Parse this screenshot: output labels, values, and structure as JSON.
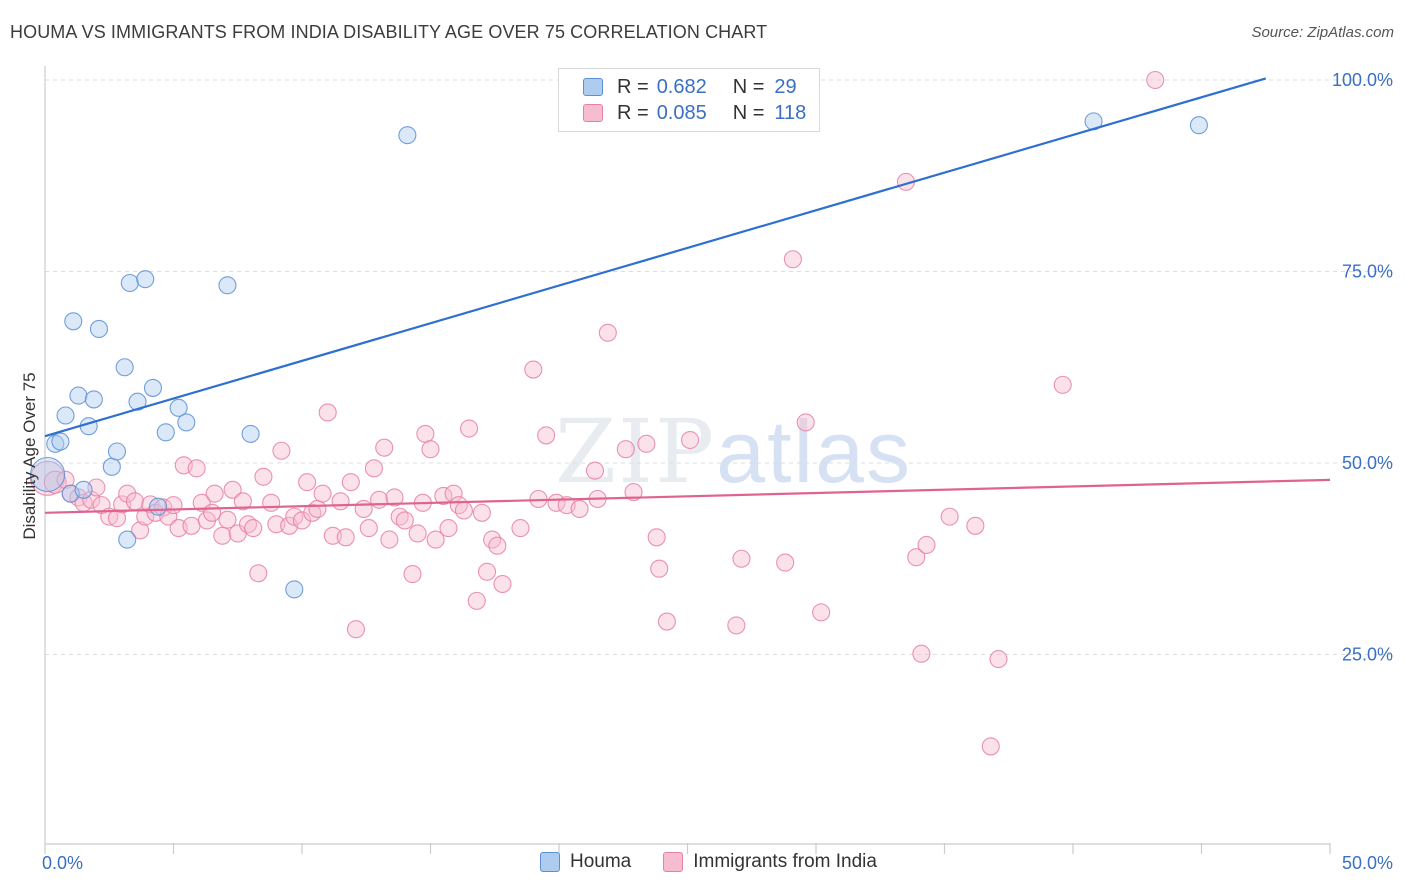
{
  "title": "HOUMA VS IMMIGRANTS FROM INDIA DISABILITY AGE OVER 75 CORRELATION CHART",
  "source": "Source: ZipAtlas.com",
  "watermark": {
    "zip": "ZIP",
    "atlas": "atlas"
  },
  "legend": {
    "houma": {
      "r_label": "R =",
      "r_value": "0.682",
      "n_label": "N =",
      "n_value": "29"
    },
    "india": {
      "r_label": "R =",
      "r_value": "0.085",
      "n_label": "N =",
      "n_value": "118"
    }
  },
  "bottom_legend": {
    "houma": "Houma",
    "india": "Immigrants from India"
  },
  "colors": {
    "houma_fill": "#aecbf0",
    "houma_stroke": "#5b8fd6",
    "houma_line": "#2e6fcf",
    "india_fill": "#f6bcd0",
    "india_stroke": "#e87fa4",
    "india_line": "#e0638f",
    "grid": "#dddddd",
    "axis_label": "#3a6fc4"
  },
  "chart_data": {
    "type": "scatter",
    "xlabel": "",
    "ylabel": "Disability Age Over 75",
    "xlim": [
      0,
      50
    ],
    "ylim": [
      0,
      104
    ],
    "x_tick_labels": [
      {
        "v": 0,
        "label": "0.0%"
      },
      {
        "v": 50,
        "label": "50.0%"
      }
    ],
    "y_tick_labels": [
      {
        "v": 25,
        "label": "25.0%"
      },
      {
        "v": 50,
        "label": "50.0%"
      },
      {
        "v": 75,
        "label": "75.0%"
      },
      {
        "v": 100,
        "label": "100.0%"
      }
    ],
    "series": [
      {
        "name": "Houma",
        "trend": {
          "x0": 0,
          "y0": 53.5,
          "x1": 47.5,
          "y1": 100.2
        },
        "points": [
          [
            0.1,
            48.5,
            3
          ],
          [
            0.4,
            52.5,
            1
          ],
          [
            0.6,
            52.8,
            1
          ],
          [
            0.8,
            56.2,
            1
          ],
          [
            1.0,
            46.0,
            1
          ],
          [
            1.1,
            68.5,
            1
          ],
          [
            1.3,
            58.8,
            1
          ],
          [
            1.7,
            54.8,
            1
          ],
          [
            1.9,
            58.3,
            1
          ],
          [
            2.1,
            67.5,
            1
          ],
          [
            1.5,
            46.5,
            1
          ],
          [
            2.6,
            49.5,
            1
          ],
          [
            2.8,
            51.5,
            1
          ],
          [
            3.1,
            62.5,
            1
          ],
          [
            3.2,
            40.0,
            1
          ],
          [
            3.3,
            73.5,
            1
          ],
          [
            3.6,
            58.0,
            1
          ],
          [
            3.9,
            74.0,
            1
          ],
          [
            4.2,
            59.8,
            1
          ],
          [
            4.4,
            44.3,
            1
          ],
          [
            4.7,
            54.0,
            1
          ],
          [
            5.2,
            57.2,
            1
          ],
          [
            5.5,
            55.3,
            1
          ],
          [
            7.1,
            73.2,
            1
          ],
          [
            8.0,
            53.8,
            1
          ],
          [
            9.7,
            33.5,
            1
          ],
          [
            14.1,
            92.8,
            1
          ],
          [
            40.8,
            94.6,
            1
          ],
          [
            44.9,
            94.1,
            1
          ]
        ]
      },
      {
        "name": "Immigrants from India",
        "trend": {
          "x0": 0,
          "y0": 43.5,
          "x1": 50,
          "y1": 47.8
        },
        "points": [
          [
            0.1,
            48.0,
            3
          ],
          [
            0.4,
            47.5,
            2
          ],
          [
            0.8,
            47.8,
            1
          ],
          [
            1.0,
            46.0,
            1
          ],
          [
            1.3,
            45.5,
            1
          ],
          [
            1.5,
            44.8,
            1
          ],
          [
            1.8,
            45.2,
            1
          ],
          [
            2.0,
            46.8,
            1
          ],
          [
            2.2,
            44.5,
            1
          ],
          [
            2.5,
            43.0,
            1
          ],
          [
            2.8,
            42.8,
            1
          ],
          [
            3.0,
            44.6,
            1
          ],
          [
            3.2,
            46.0,
            1
          ],
          [
            3.5,
            45.0,
            1
          ],
          [
            3.7,
            41.2,
            1
          ],
          [
            3.9,
            43.0,
            1
          ],
          [
            4.1,
            44.6,
            1
          ],
          [
            4.3,
            43.5,
            1
          ],
          [
            4.6,
            44.2,
            1
          ],
          [
            4.8,
            43.0,
            1
          ],
          [
            5.0,
            44.5,
            1
          ],
          [
            5.2,
            41.5,
            1
          ],
          [
            5.4,
            49.7,
            1
          ],
          [
            5.7,
            41.8,
            1
          ],
          [
            5.9,
            49.3,
            1
          ],
          [
            6.1,
            44.8,
            1
          ],
          [
            6.3,
            42.5,
            1
          ],
          [
            6.5,
            43.5,
            1
          ],
          [
            6.6,
            46.0,
            1
          ],
          [
            6.9,
            40.5,
            1
          ],
          [
            7.1,
            42.6,
            1
          ],
          [
            7.3,
            46.5,
            1
          ],
          [
            7.5,
            40.8,
            1
          ],
          [
            7.7,
            45.0,
            1
          ],
          [
            7.9,
            42.0,
            1
          ],
          [
            8.1,
            41.5,
            1
          ],
          [
            8.3,
            35.6,
            1
          ],
          [
            8.5,
            48.2,
            1
          ],
          [
            8.8,
            44.8,
            1
          ],
          [
            9.0,
            42.0,
            1
          ],
          [
            9.2,
            51.6,
            1
          ],
          [
            9.5,
            41.8,
            1
          ],
          [
            9.7,
            43.0,
            1
          ],
          [
            10.0,
            42.5,
            1
          ],
          [
            10.2,
            47.5,
            1
          ],
          [
            10.4,
            43.5,
            1
          ],
          [
            10.6,
            44.0,
            1
          ],
          [
            10.8,
            46.0,
            1
          ],
          [
            11.0,
            56.6,
            1
          ],
          [
            11.2,
            40.5,
            1
          ],
          [
            11.5,
            45.0,
            1
          ],
          [
            11.7,
            40.3,
            1
          ],
          [
            11.9,
            47.5,
            1
          ],
          [
            12.1,
            28.3,
            1
          ],
          [
            12.4,
            44.0,
            1
          ],
          [
            12.6,
            41.5,
            1
          ],
          [
            12.8,
            49.3,
            1
          ],
          [
            13.0,
            45.2,
            1
          ],
          [
            13.2,
            52.0,
            1
          ],
          [
            13.4,
            40.0,
            1
          ],
          [
            13.6,
            45.5,
            1
          ],
          [
            13.8,
            43.0,
            1
          ],
          [
            14.0,
            42.5,
            1
          ],
          [
            14.3,
            35.5,
            1
          ],
          [
            14.5,
            40.8,
            1
          ],
          [
            14.7,
            44.8,
            1
          ],
          [
            14.8,
            53.8,
            1
          ],
          [
            15.0,
            51.8,
            1
          ],
          [
            15.2,
            40.0,
            1
          ],
          [
            15.5,
            45.7,
            1
          ],
          [
            15.7,
            41.5,
            1
          ],
          [
            15.9,
            46.0,
            1
          ],
          [
            16.1,
            44.5,
            1
          ],
          [
            16.3,
            43.8,
            1
          ],
          [
            16.5,
            54.5,
            1
          ],
          [
            16.8,
            32.0,
            1
          ],
          [
            17.0,
            43.5,
            1
          ],
          [
            17.2,
            35.8,
            1
          ],
          [
            17.4,
            40.0,
            1
          ],
          [
            17.6,
            39.2,
            1
          ],
          [
            17.8,
            34.2,
            1
          ],
          [
            18.5,
            41.5,
            1
          ],
          [
            19.0,
            62.2,
            1
          ],
          [
            19.2,
            45.3,
            1
          ],
          [
            19.5,
            53.6,
            1
          ],
          [
            19.9,
            44.8,
            1
          ],
          [
            20.3,
            44.5,
            1
          ],
          [
            20.8,
            44.0,
            1
          ],
          [
            21.4,
            49.0,
            1
          ],
          [
            21.5,
            45.3,
            1
          ],
          [
            21.9,
            67.0,
            1
          ],
          [
            22.6,
            51.8,
            1
          ],
          [
            22.9,
            46.2,
            1
          ],
          [
            23.4,
            52.5,
            1
          ],
          [
            23.9,
            36.2,
            1
          ],
          [
            23.8,
            40.3,
            1
          ],
          [
            24.2,
            29.3,
            1
          ],
          [
            25.1,
            53.0,
            1
          ],
          [
            26.9,
            28.8,
            1
          ],
          [
            27.1,
            37.5,
            1
          ],
          [
            28.8,
            37.0,
            1
          ],
          [
            29.1,
            76.6,
            1
          ],
          [
            29.6,
            55.3,
            1
          ],
          [
            30.2,
            30.5,
            1
          ],
          [
            33.5,
            86.7,
            1
          ],
          [
            33.9,
            37.7,
            1
          ],
          [
            34.1,
            25.1,
            1
          ],
          [
            34.3,
            39.3,
            1
          ],
          [
            35.2,
            43.0,
            1
          ],
          [
            36.2,
            41.8,
            1
          ],
          [
            36.8,
            13.0,
            1
          ],
          [
            37.1,
            24.4,
            1
          ],
          [
            39.6,
            60.2,
            1
          ],
          [
            43.2,
            100.0,
            1
          ]
        ]
      }
    ]
  }
}
